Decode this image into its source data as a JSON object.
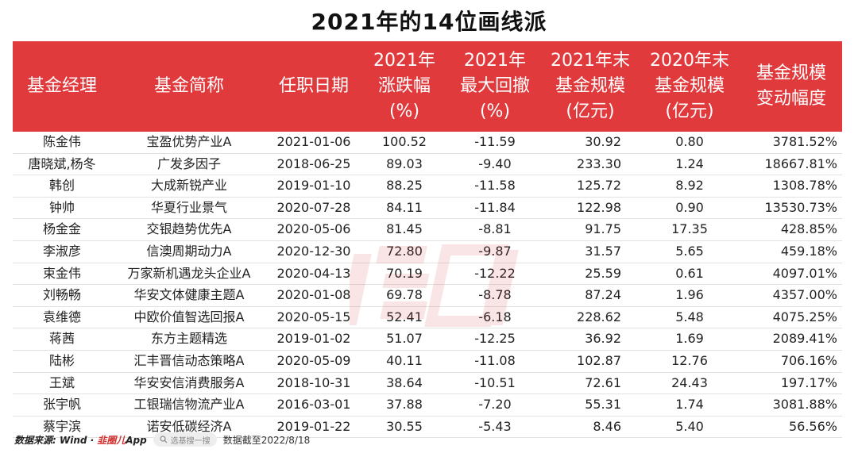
{
  "title": "2021年的14位画线派",
  "headers": [
    [
      "基金经理"
    ],
    [
      "基金简称"
    ],
    [
      "任职日期"
    ],
    [
      "2021年",
      "涨跌幅",
      "(%)"
    ],
    [
      "2021年",
      "最大回撤",
      "(%)"
    ],
    [
      "2021年末",
      "基金规模",
      "(亿元)"
    ],
    [
      "2020年末",
      "基金规模",
      "(亿元)"
    ],
    [
      "基金规模",
      "变动幅度"
    ]
  ],
  "rows": [
    [
      "陈金伟",
      "宝盈优势产业A",
      "2021-01-06",
      "100.52",
      "-11.59",
      "30.92",
      "0.80",
      "3781.52%"
    ],
    [
      "唐晓斌,杨冬",
      "广发多因子",
      "2018-06-25",
      "89.03",
      "-9.40",
      "233.30",
      "1.24",
      "18667.81%"
    ],
    [
      "韩创",
      "大成新锐产业",
      "2019-01-10",
      "88.25",
      "-11.58",
      "125.72",
      "8.92",
      "1308.78%"
    ],
    [
      "钟帅",
      "华夏行业景气",
      "2020-07-28",
      "84.11",
      "-11.84",
      "122.98",
      "0.90",
      "13530.73%"
    ],
    [
      "杨金金",
      "交银趋势优先A",
      "2020-05-06",
      "81.45",
      "-8.81",
      "91.75",
      "17.35",
      "428.85%"
    ],
    [
      "李淑彦",
      "信澳周期动力A",
      "2020-12-30",
      "72.80",
      "-9.87",
      "31.57",
      "5.65",
      "459.18%"
    ],
    [
      "束金伟",
      "万家新机遇龙头企业A",
      "2020-04-13",
      "70.19",
      "-12.22",
      "25.59",
      "0.61",
      "4097.01%"
    ],
    [
      "刘畅畅",
      "华安文体健康主题A",
      "2020-01-08",
      "69.78",
      "-8.78",
      "87.24",
      "1.96",
      "4357.00%"
    ],
    [
      "袁维德",
      "中欧价值智选回报A",
      "2020-05-15",
      "52.41",
      "-6.18",
      "228.62",
      "5.48",
      "4075.25%"
    ],
    [
      "蒋茜",
      "东方主题精选",
      "2019-01-02",
      "51.07",
      "-12.25",
      "36.92",
      "1.69",
      "2089.41%"
    ],
    [
      "陆彬",
      "汇丰晋信动态策略A",
      "2020-05-09",
      "40.11",
      "-11.08",
      "102.87",
      "12.76",
      "706.16%"
    ],
    [
      "王斌",
      "华安安信消费服务A",
      "2018-10-31",
      "38.64",
      "-10.51",
      "72.61",
      "24.43",
      "197.17%"
    ],
    [
      "张宇帆",
      "工银瑞信物流产业A",
      "2016-03-01",
      "37.88",
      "-7.20",
      "55.31",
      "1.74",
      "3081.88%"
    ],
    [
      "蔡宇滨",
      "诺安低碳经济A",
      "2019-01-22",
      "30.55",
      "-5.43",
      "8.46",
      "5.40",
      "56.56%"
    ]
  ],
  "footer": {
    "source_label": "数据来源: Wind ·",
    "brand_red": "韭圈儿",
    "brand_suffix": "App",
    "search_placeholder": "选基搜一搜",
    "date_note": "数据截至2022/8/18"
  },
  "watermark_text": "韭圈儿",
  "colors": {
    "header_bg": "#e03a3c",
    "brand_red": "#d32f2f"
  },
  "icons": {
    "search": "magnifier-icon"
  }
}
